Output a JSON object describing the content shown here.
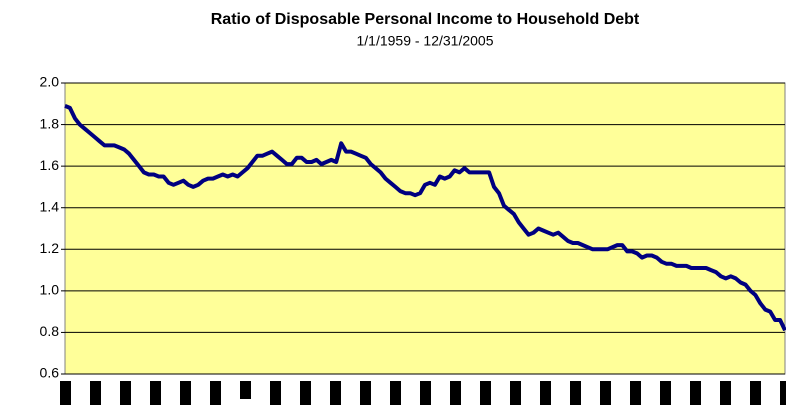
{
  "chart_data": {
    "type": "line",
    "title": "Ratio of Disposable Personal Income to Household Debt",
    "subtitle": "1/1/1959 - 12/31/2005",
    "ylim": [
      0.6,
      2.0
    ],
    "yticks": [
      {
        "value": 2.0,
        "label": "2.0"
      },
      1.8,
      1.6,
      1.4,
      1.2,
      {
        "value": 1.0,
        "label": "1.0"
      },
      0.8,
      0.6
    ],
    "grid": true,
    "background": "#ffff99",
    "color": "#000080",
    "values": [
      1.89,
      1.88,
      1.83,
      1.8,
      1.78,
      1.76,
      1.74,
      1.72,
      1.7,
      1.7,
      1.7,
      1.69,
      1.68,
      1.66,
      1.63,
      1.6,
      1.57,
      1.56,
      1.56,
      1.55,
      1.55,
      1.52,
      1.51,
      1.52,
      1.53,
      1.51,
      1.5,
      1.51,
      1.53,
      1.54,
      1.54,
      1.55,
      1.56,
      1.55,
      1.56,
      1.55,
      1.57,
      1.59,
      1.62,
      1.65,
      1.65,
      1.66,
      1.67,
      1.65,
      1.63,
      1.61,
      1.61,
      1.64,
      1.64,
      1.62,
      1.62,
      1.63,
      1.61,
      1.62,
      1.63,
      1.62,
      1.71,
      1.67,
      1.67,
      1.66,
      1.65,
      1.64,
      1.61,
      1.59,
      1.57,
      1.54,
      1.52,
      1.5,
      1.48,
      1.47,
      1.47,
      1.46,
      1.47,
      1.51,
      1.52,
      1.51,
      1.55,
      1.54,
      1.55,
      1.58,
      1.57,
      1.59,
      1.57,
      1.57,
      1.57,
      1.57,
      1.57,
      1.5,
      1.47,
      1.41,
      1.39,
      1.37,
      1.33,
      1.3,
      1.27,
      1.28,
      1.3,
      1.29,
      1.28,
      1.27,
      1.28,
      1.26,
      1.24,
      1.23,
      1.23,
      1.22,
      1.21,
      1.2,
      1.2,
      1.2,
      1.2,
      1.21,
      1.22,
      1.22,
      1.19,
      1.19,
      1.18,
      1.16,
      1.17,
      1.17,
      1.16,
      1.14,
      1.13,
      1.13,
      1.12,
      1.12,
      1.12,
      1.11,
      1.11,
      1.11,
      1.11,
      1.1,
      1.09,
      1.07,
      1.06,
      1.07,
      1.06,
      1.04,
      1.03,
      1.0,
      0.98,
      0.94,
      0.91,
      0.9,
      0.86,
      0.86,
      0.81
    ]
  }
}
